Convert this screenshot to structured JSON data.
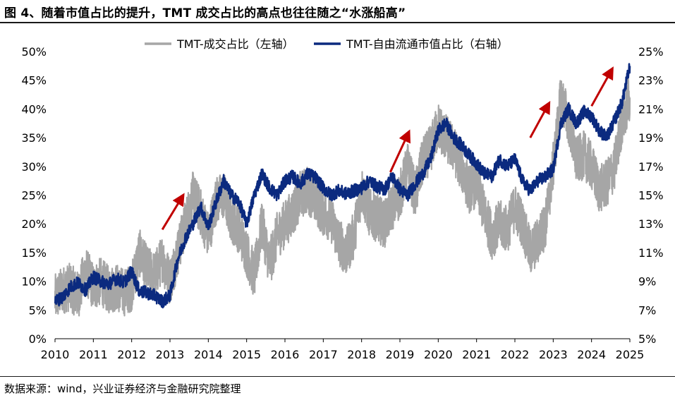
{
  "figure_title": "图 4、随着市值占比的提升，TMT 成交占比的高点也往往随之“水涨船高”",
  "source_note": "数据来源：wind，兴业证券经济与金融研究院整理",
  "colors": {
    "left_series": "#a6a6a6",
    "right_series": "#0b2a7f",
    "arrow": "#c00000",
    "axis": "#000000"
  },
  "chart_data": {
    "type": "line",
    "title": "",
    "xlabel": "",
    "x_range": [
      2010,
      2025
    ],
    "x_ticks": [
      "2010",
      "2011",
      "2012",
      "2013",
      "2014",
      "2015",
      "2016",
      "2017",
      "2018",
      "2019",
      "2020",
      "2021",
      "2022",
      "2023",
      "2024",
      "2025"
    ],
    "y_left": {
      "range": [
        0,
        50
      ],
      "ticks": [
        "0%",
        "5%",
        "10%",
        "15%",
        "20%",
        "25%",
        "30%",
        "35%",
        "40%",
        "45%",
        "50%"
      ],
      "unit": "%"
    },
    "y_right": {
      "range": [
        5,
        25
      ],
      "ticks": [
        "5%",
        "7%",
        "9%",
        "11%",
        "13%",
        "15%",
        "17%",
        "19%",
        "21%",
        "23%",
        "25%"
      ],
      "unit": "%"
    },
    "legend": {
      "placement": "top-center"
    },
    "series": [
      {
        "name": "TMT-成交占比（左轴）",
        "axis": "left",
        "color": "#a6a6a6",
        "points": [
          [
            2010.0,
            7
          ],
          [
            2010.2,
            8.5
          ],
          [
            2010.4,
            9
          ],
          [
            2010.6,
            7.5
          ],
          [
            2010.8,
            12
          ],
          [
            2011.0,
            9
          ],
          [
            2011.2,
            10
          ],
          [
            2011.4,
            8.5
          ],
          [
            2011.6,
            9
          ],
          [
            2011.8,
            8
          ],
          [
            2012.0,
            9
          ],
          [
            2012.2,
            15
          ],
          [
            2012.4,
            12
          ],
          [
            2012.6,
            11
          ],
          [
            2012.8,
            14
          ],
          [
            2013.0,
            10
          ],
          [
            2013.2,
            15
          ],
          [
            2013.4,
            20
          ],
          [
            2013.6,
            25
          ],
          [
            2013.8,
            22
          ],
          [
            2014.0,
            18
          ],
          [
            2014.2,
            24
          ],
          [
            2014.4,
            25
          ],
          [
            2014.6,
            21
          ],
          [
            2014.8,
            19
          ],
          [
            2015.0,
            15
          ],
          [
            2015.2,
            11
          ],
          [
            2015.4,
            20
          ],
          [
            2015.6,
            13
          ],
          [
            2015.8,
            18
          ],
          [
            2016.0,
            20
          ],
          [
            2016.2,
            22
          ],
          [
            2016.4,
            25
          ],
          [
            2016.6,
            26
          ],
          [
            2016.8,
            24
          ],
          [
            2017.0,
            22
          ],
          [
            2017.2,
            21
          ],
          [
            2017.4,
            17
          ],
          [
            2017.6,
            15
          ],
          [
            2017.8,
            18
          ],
          [
            2018.0,
            26
          ],
          [
            2018.2,
            22
          ],
          [
            2018.4,
            21
          ],
          [
            2018.6,
            20
          ],
          [
            2018.8,
            23
          ],
          [
            2019.0,
            25
          ],
          [
            2019.2,
            30
          ],
          [
            2019.4,
            25
          ],
          [
            2019.6,
            31
          ],
          [
            2019.8,
            33
          ],
          [
            2020.0,
            37
          ],
          [
            2020.2,
            35
          ],
          [
            2020.4,
            33
          ],
          [
            2020.6,
            30
          ],
          [
            2020.8,
            26
          ],
          [
            2021.0,
            27
          ],
          [
            2021.2,
            22
          ],
          [
            2021.4,
            18
          ],
          [
            2021.6,
            20
          ],
          [
            2021.8,
            19
          ],
          [
            2022.0,
            23
          ],
          [
            2022.2,
            20
          ],
          [
            2022.4,
            15
          ],
          [
            2022.6,
            17
          ],
          [
            2022.8,
            20
          ],
          [
            2023.0,
            30
          ],
          [
            2023.2,
            42
          ],
          [
            2023.4,
            38
          ],
          [
            2023.6,
            31
          ],
          [
            2023.8,
            32
          ],
          [
            2024.0,
            30
          ],
          [
            2024.2,
            26
          ],
          [
            2024.4,
            27
          ],
          [
            2024.6,
            30
          ],
          [
            2024.8,
            38
          ],
          [
            2025.0,
            42
          ]
        ]
      },
      {
        "name": "TMT-自由流通市值占比（右轴）",
        "axis": "right",
        "color": "#0b2a7f",
        "points": [
          [
            2010.0,
            7.6
          ],
          [
            2010.2,
            7.9
          ],
          [
            2010.4,
            8.6
          ],
          [
            2010.6,
            8.9
          ],
          [
            2010.8,
            8.4
          ],
          [
            2011.0,
            9.3
          ],
          [
            2011.2,
            9.0
          ],
          [
            2011.4,
            8.8
          ],
          [
            2011.6,
            9.2
          ],
          [
            2011.8,
            8.9
          ],
          [
            2012.0,
            9.7
          ],
          [
            2012.2,
            8.3
          ],
          [
            2012.4,
            8.2
          ],
          [
            2012.6,
            8.0
          ],
          [
            2012.8,
            7.6
          ],
          [
            2013.0,
            8.0
          ],
          [
            2013.2,
            10.5
          ],
          [
            2013.4,
            12.0
          ],
          [
            2013.6,
            13.0
          ],
          [
            2013.8,
            14.2
          ],
          [
            2014.0,
            12.8
          ],
          [
            2014.2,
            14.5
          ],
          [
            2014.4,
            16.0
          ],
          [
            2014.6,
            15.0
          ],
          [
            2014.8,
            14.5
          ],
          [
            2015.0,
            13.0
          ],
          [
            2015.2,
            15.0
          ],
          [
            2015.4,
            16.5
          ],
          [
            2015.6,
            15.5
          ],
          [
            2015.8,
            15.0
          ],
          [
            2016.0,
            16.0
          ],
          [
            2016.2,
            16.3
          ],
          [
            2016.4,
            15.8
          ],
          [
            2016.6,
            16.5
          ],
          [
            2016.8,
            16.2
          ],
          [
            2017.0,
            15.5
          ],
          [
            2017.2,
            15.0
          ],
          [
            2017.4,
            15.3
          ],
          [
            2017.6,
            15.1
          ],
          [
            2017.8,
            15.3
          ],
          [
            2018.0,
            15.5
          ],
          [
            2018.2,
            16.0
          ],
          [
            2018.4,
            15.6
          ],
          [
            2018.6,
            15.4
          ],
          [
            2018.8,
            16.3
          ],
          [
            2019.0,
            15.4
          ],
          [
            2019.2,
            15.0
          ],
          [
            2019.4,
            15.8
          ],
          [
            2019.6,
            16.5
          ],
          [
            2019.8,
            17.5
          ],
          [
            2020.0,
            19.5
          ],
          [
            2020.2,
            20.0
          ],
          [
            2020.4,
            19.0
          ],
          [
            2020.6,
            18.5
          ],
          [
            2020.8,
            17.8
          ],
          [
            2021.0,
            17.2
          ],
          [
            2021.2,
            16.5
          ],
          [
            2021.4,
            16.3
          ],
          [
            2021.6,
            17.5
          ],
          [
            2021.8,
            17.0
          ],
          [
            2022.0,
            17.5
          ],
          [
            2022.2,
            16.0
          ],
          [
            2022.4,
            15.3
          ],
          [
            2022.6,
            16.0
          ],
          [
            2022.8,
            16.3
          ],
          [
            2023.0,
            16.8
          ],
          [
            2023.2,
            20.0
          ],
          [
            2023.4,
            21.0
          ],
          [
            2023.6,
            20.0
          ],
          [
            2023.8,
            20.8
          ],
          [
            2024.0,
            20.5
          ],
          [
            2024.2,
            19.5
          ],
          [
            2024.4,
            19.0
          ],
          [
            2024.6,
            20.2
          ],
          [
            2024.8,
            21.5
          ],
          [
            2025.0,
            24.0
          ]
        ]
      }
    ],
    "annotations": [
      {
        "type": "arrow",
        "from": [
          2012.8,
          19.0
        ],
        "to": [
          2013.3,
          24.5
        ],
        "axis": "left"
      },
      {
        "type": "arrow",
        "from": [
          2018.75,
          29.0
        ],
        "to": [
          2019.2,
          35.5
        ],
        "axis": "left"
      },
      {
        "type": "arrow",
        "from": [
          2022.4,
          35.0
        ],
        "to": [
          2022.85,
          40.5
        ],
        "axis": "left"
      },
      {
        "type": "arrow",
        "from": [
          2024.0,
          40.5
        ],
        "to": [
          2024.5,
          46.5
        ],
        "axis": "left"
      }
    ]
  }
}
